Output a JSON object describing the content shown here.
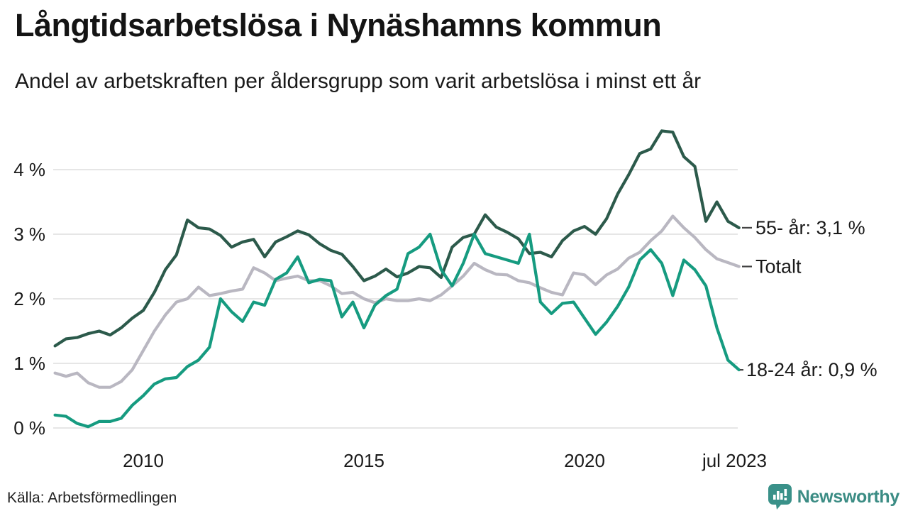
{
  "header": {
    "title": "Långtidsarbetslösa i Nynäshamns kommun",
    "subtitle": "Andel av arbetskraften per åldersgrupp som varit arbetslösa i minst ett år"
  },
  "source_note": "Källa: Arbetsförmedlingen",
  "logo": {
    "text": "Newsworthy",
    "icon": "speech-bubble-bar-chart-icon",
    "color": "#3a9189",
    "text_color": "#3b8c84"
  },
  "colors": {
    "series_55": "#2c5a4b",
    "series_total": "#b9b7c1",
    "series_1824": "#169b80",
    "gridline": "#e3e3e3",
    "text": "#1a1a1a",
    "end_tick": "#444444"
  },
  "chart_data": {
    "type": "line",
    "title": "Långtidsarbetslösa i Nynäshamns kommun",
    "subtitle": "Andel av arbetskraften per åldersgrupp som varit arbetslösa i minst ett år",
    "xlabel": "",
    "ylabel": "",
    "grid": "horizontal-only",
    "legend_position": "right-end-labels",
    "x_start": 2008.0,
    "x_step": 0.25,
    "x_end": 2023.5,
    "ylim": [
      0,
      4.8
    ],
    "yticks": [
      {
        "value": 0,
        "label": "0 %"
      },
      {
        "value": 1,
        "label": "1 %"
      },
      {
        "value": 2,
        "label": "2 %"
      },
      {
        "value": 3,
        "label": "3 %"
      },
      {
        "value": 4,
        "label": "4 %"
      }
    ],
    "xticks": [
      {
        "value": 2010,
        "label": "2010"
      },
      {
        "value": 2015,
        "label": "2015"
      },
      {
        "value": 2020,
        "label": "2020"
      },
      {
        "value": 2023.4,
        "label": "jul 2023"
      }
    ],
    "series": [
      {
        "name": "55- år",
        "end_label": "55- år: 3,1 %",
        "end_value_text": "3,1 %",
        "color": "#2c5a4b",
        "values": [
          1.27,
          1.38,
          1.4,
          1.46,
          1.5,
          1.44,
          1.55,
          1.7,
          1.82,
          2.1,
          2.45,
          2.68,
          3.22,
          3.1,
          3.08,
          2.98,
          2.8,
          2.88,
          2.92,
          2.65,
          2.88,
          2.96,
          3.05,
          2.99,
          2.85,
          2.75,
          2.69,
          2.5,
          2.28,
          2.35,
          2.46,
          2.34,
          2.4,
          2.5,
          2.48,
          2.33,
          2.8,
          2.95,
          3.0,
          3.3,
          3.11,
          3.03,
          2.93,
          2.7,
          2.72,
          2.65,
          2.9,
          3.05,
          3.12,
          3.0,
          3.24,
          3.62,
          3.92,
          4.25,
          4.32,
          4.6,
          4.58,
          4.2,
          4.05,
          3.2,
          3.5,
          3.2,
          3.1
        ]
      },
      {
        "name": "Totalt",
        "end_label": "Totalt",
        "end_value_text": "",
        "color": "#b9b7c1",
        "values": [
          0.85,
          0.8,
          0.85,
          0.7,
          0.63,
          0.63,
          0.72,
          0.9,
          1.2,
          1.5,
          1.75,
          1.95,
          2.0,
          2.18,
          2.05,
          2.08,
          2.12,
          2.15,
          2.48,
          2.4,
          2.28,
          2.32,
          2.35,
          2.28,
          2.28,
          2.2,
          2.08,
          2.1,
          2.0,
          1.94,
          2.0,
          1.97,
          1.97,
          2.0,
          1.97,
          2.06,
          2.2,
          2.35,
          2.55,
          2.45,
          2.38,
          2.37,
          2.28,
          2.25,
          2.17,
          2.1,
          2.06,
          2.4,
          2.37,
          2.22,
          2.37,
          2.46,
          2.63,
          2.72,
          2.9,
          3.05,
          3.28,
          3.1,
          2.95,
          2.76,
          2.62,
          2.56,
          2.5
        ]
      },
      {
        "name": "18-24 år",
        "end_label": "18-24 år: 0,9 %",
        "end_value_text": "0,9 %",
        "color": "#169b80",
        "values": [
          0.2,
          0.18,
          0.07,
          0.02,
          0.1,
          0.1,
          0.15,
          0.35,
          0.5,
          0.68,
          0.76,
          0.78,
          0.95,
          1.05,
          1.25,
          2.0,
          1.8,
          1.65,
          1.95,
          1.9,
          2.3,
          2.4,
          2.65,
          2.25,
          2.3,
          2.28,
          1.72,
          1.95,
          1.55,
          1.9,
          2.05,
          2.15,
          2.7,
          2.8,
          3.0,
          2.45,
          2.2,
          2.55,
          3.0,
          2.7,
          2.65,
          2.6,
          2.55,
          3.0,
          1.95,
          1.77,
          1.93,
          1.95,
          1.7,
          1.45,
          1.64,
          1.88,
          2.18,
          2.6,
          2.76,
          2.55,
          2.05,
          2.6,
          2.45,
          2.2,
          1.55,
          1.05,
          0.9
        ]
      }
    ]
  }
}
